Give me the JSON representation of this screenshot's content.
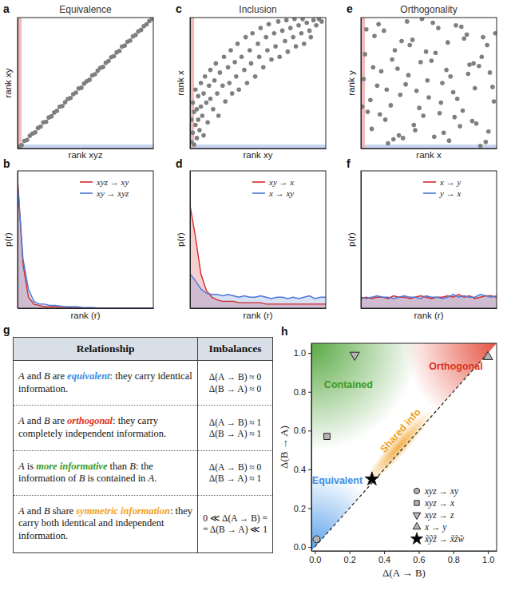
{
  "chart_data": [
    {
      "panel": "a",
      "type": "scatter",
      "title": "Equivalence",
      "x_label": "rank xyz",
      "y_label": "rank xy",
      "xlim": [
        0,
        100
      ],
      "ylim": [
        0,
        100
      ],
      "tick_labels": false,
      "color": "#7f7f7f",
      "neighbor_band": 3,
      "x": [
        1,
        3,
        5,
        7,
        9,
        11,
        13,
        15,
        17,
        19,
        21,
        23,
        25,
        27,
        29,
        31,
        33,
        35,
        37,
        39,
        41,
        43,
        45,
        47,
        49,
        51,
        53,
        55,
        57,
        59,
        61,
        63,
        65,
        67,
        69,
        71,
        73,
        75,
        77,
        79,
        81,
        83,
        85,
        87,
        89,
        91,
        93,
        95,
        97,
        99
      ],
      "values": [
        1.5,
        2.6,
        5.8,
        6.5,
        9.7,
        11.4,
        12.3,
        15.6,
        16.8,
        19.9,
        20.4,
        23.7,
        24.6,
        27.5,
        28.8,
        31.9,
        32.4,
        35.3,
        37.8,
        38.6,
        41.5,
        42.7,
        45.9,
        46.4,
        49.6,
        51.3,
        52.5,
        55.8,
        56.7,
        59.4,
        61.6,
        62.3,
        65.5,
        66.8,
        69.7,
        70.6,
        73.4,
        74.5,
        77.9,
        78.6,
        81.5,
        82.4,
        85.6,
        86.7,
        89.5,
        90.6,
        93.4,
        94.8,
        97.3,
        98.9
      ]
    },
    {
      "panel": "b",
      "type": "line",
      "x_label": "rank (r)",
      "y_label": "p(r)",
      "xlim": [
        0,
        100
      ],
      "ylim": [
        0,
        1
      ],
      "tick_labels": false,
      "legend": "upper right",
      "x": [
        0,
        4,
        8,
        12,
        16,
        20,
        24,
        28,
        32,
        36,
        40,
        44,
        48,
        52,
        56,
        60,
        64,
        68,
        72,
        76,
        80,
        84,
        88,
        92,
        96,
        100
      ],
      "series": [
        {
          "name": "xyz → xy",
          "color": "#d42a2a",
          "values": [
            0.95,
            0.32,
            0.08,
            0.03,
            0.02,
            0.01,
            0.01,
            0.01,
            0.005,
            0.005,
            0,
            0,
            0,
            0,
            0,
            0,
            0,
            0,
            0,
            0,
            0,
            0,
            0,
            0,
            0,
            0
          ]
        },
        {
          "name": "xy → xyz",
          "color": "#4a78d6",
          "values": [
            0.92,
            0.36,
            0.14,
            0.05,
            0.03,
            0.03,
            0.02,
            0.02,
            0.015,
            0.01,
            0.01,
            0.01,
            0.005,
            0.005,
            0.005,
            0,
            0,
            0,
            0,
            0,
            0,
            0,
            0,
            0,
            0,
            0
          ]
        }
      ]
    },
    {
      "panel": "c",
      "type": "scatter",
      "title": "Inclusion",
      "x_label": "rank xy",
      "y_label": "rank x",
      "xlim": [
        0,
        100
      ],
      "ylim": [
        0,
        100
      ],
      "tick_labels": false,
      "color": "#7f7f7f",
      "neighbor_band": 3,
      "x": [
        1,
        1,
        2,
        2,
        3,
        3,
        4,
        4,
        5,
        5,
        6,
        6,
        7,
        8,
        8,
        9,
        10,
        10,
        11,
        12,
        13,
        14,
        15,
        15,
        17,
        18,
        19,
        20,
        21,
        22,
        24,
        25,
        26,
        28,
        29,
        30,
        31,
        33,
        34,
        35,
        36,
        38,
        40,
        41,
        42,
        44,
        45,
        46,
        48,
        50,
        51,
        52,
        54,
        56,
        57,
        58,
        60,
        62,
        63,
        65,
        66,
        68,
        70,
        71,
        72,
        74,
        76,
        77,
        78,
        80,
        82,
        83,
        84,
        86,
        88,
        89,
        91,
        93,
        95,
        97
      ],
      "values": [
        5,
        22,
        12,
        35,
        3,
        28,
        18,
        45,
        8,
        30,
        40,
        22,
        14,
        50,
        32,
        25,
        42,
        10,
        55,
        35,
        20,
        48,
        60,
        38,
        30,
        52,
        65,
        42,
        25,
        58,
        48,
        70,
        36,
        62,
        50,
        75,
        42,
        66,
        55,
        80,
        45,
        70,
        60,
        85,
        50,
        75,
        65,
        88,
        55,
        80,
        70,
        92,
        62,
        85,
        75,
        95,
        68,
        88,
        78,
        97,
        70,
        90,
        82,
        98,
        74,
        92,
        85,
        99,
        78,
        94,
        88,
        99,
        80,
        96,
        90,
        85,
        98,
        94,
        99,
        97
      ]
    },
    {
      "panel": "d",
      "type": "line",
      "x_label": "rank (r)",
      "y_label": "p(r)",
      "xlim": [
        0,
        100
      ],
      "ylim": [
        0,
        1
      ],
      "tick_labels": false,
      "legend": "upper right",
      "x": [
        0,
        4,
        8,
        12,
        16,
        20,
        24,
        28,
        32,
        36,
        40,
        44,
        48,
        52,
        56,
        60,
        64,
        68,
        72,
        76,
        80,
        84,
        88,
        92,
        96,
        100
      ],
      "series": [
        {
          "name": "xy → x",
          "color": "#d42a2a",
          "values": [
            0.75,
            0.52,
            0.25,
            0.13,
            0.08,
            0.06,
            0.05,
            0.05,
            0.05,
            0.04,
            0.04,
            0.04,
            0.04,
            0.04,
            0.03,
            0.03,
            0.03,
            0.03,
            0.03,
            0.03,
            0.03,
            0.03,
            0.03,
            0.03,
            0.03,
            0.03
          ]
        },
        {
          "name": "x → xy",
          "color": "#4a78d6",
          "values": [
            0.25,
            0.2,
            0.14,
            0.11,
            0.1,
            0.1,
            0.09,
            0.1,
            0.09,
            0.08,
            0.09,
            0.08,
            0.08,
            0.09,
            0.08,
            0.07,
            0.08,
            0.08,
            0.07,
            0.08,
            0.07,
            0.08,
            0.09,
            0.07,
            0.08,
            0.08
          ]
        }
      ]
    },
    {
      "panel": "e",
      "type": "scatter",
      "title": "Orthogonality",
      "x_label": "rank x",
      "y_label": "rank y",
      "xlim": [
        0,
        100
      ],
      "ylim": [
        0,
        100
      ],
      "tick_labels": false,
      "color": "#7f7f7f",
      "neighbor_band": 3,
      "x": [
        3,
        8,
        12,
        17,
        22,
        27,
        31,
        36,
        41,
        46,
        52,
        57,
        61,
        66,
        71,
        76,
        82,
        87,
        92,
        97,
        5,
        10,
        15,
        20,
        25,
        29,
        34,
        39,
        44,
        49,
        54,
        59,
        64,
        69,
        74,
        79,
        84,
        89,
        94,
        99,
        2,
        7,
        13,
        18,
        23,
        28,
        33,
        38,
        43,
        48,
        53,
        58,
        63,
        68,
        73,
        78,
        83,
        88,
        93,
        98,
        4,
        9,
        14,
        19,
        24,
        30,
        35,
        40,
        45,
        50,
        55,
        60,
        65,
        70,
        75,
        80,
        85,
        90,
        95,
        1
      ],
      "values": [
        72,
        15,
        48,
        90,
        33,
        61,
        8,
        79,
        44,
        25,
        67,
        92,
        12,
        55,
        38,
        84,
        21,
        63,
        5,
        47,
        28,
        86,
        59,
        4,
        75,
        41,
        97,
        18,
        66,
        52,
        9,
        35,
        81,
        24,
        93,
        57,
        46,
        70,
        13,
        88,
        53,
        37,
        95,
        22,
        68,
        10,
        49,
        83,
        31,
        74,
        96,
        27,
        60,
        43,
        17,
        87,
        65,
        2,
        79,
        36,
        91,
        62,
        26,
        45,
        7,
        82,
        56,
        14,
        99,
        39,
        73,
        50,
        6,
        94,
        29,
        64,
        19,
        85,
        58,
        32
      ]
    },
    {
      "panel": "f",
      "type": "line",
      "x_label": "rank (r)",
      "y_label": "p(r)",
      "xlim": [
        0,
        100
      ],
      "ylim": [
        0,
        1
      ],
      "tick_labels": false,
      "legend": "upper right",
      "x": [
        0,
        4,
        8,
        12,
        16,
        20,
        24,
        28,
        32,
        36,
        40,
        44,
        48,
        52,
        56,
        60,
        64,
        68,
        72,
        76,
        80,
        84,
        88,
        92,
        96,
        100
      ],
      "series": [
        {
          "name": "x → y",
          "color": "#d42a2a",
          "values": [
            0.07,
            0.08,
            0.07,
            0.08,
            0.08,
            0.07,
            0.09,
            0.08,
            0.08,
            0.07,
            0.08,
            0.09,
            0.08,
            0.07,
            0.08,
            0.08,
            0.09,
            0.08,
            0.1,
            0.08,
            0.09,
            0.07,
            0.08,
            0.09,
            0.09,
            0.08
          ]
        },
        {
          "name": "y → x",
          "color": "#4a78d6",
          "values": [
            0.08,
            0.07,
            0.08,
            0.09,
            0.08,
            0.08,
            0.07,
            0.08,
            0.09,
            0.08,
            0.08,
            0.07,
            0.09,
            0.08,
            0.08,
            0.07,
            0.08,
            0.1,
            0.08,
            0.09,
            0.08,
            0.08,
            0.1,
            0.09,
            0.08,
            0.09
          ]
        }
      ]
    },
    {
      "panel": "h",
      "type": "scatter",
      "x_label": "Δ(A → B)",
      "y_label": "Δ(B → A)",
      "xlim": [
        -0.02,
        1.05
      ],
      "ylim": [
        -0.02,
        1.05
      ],
      "xticks": [
        {
          "value": 0,
          "label": "0.0"
        },
        {
          "value": 0.2,
          "label": "0.2"
        },
        {
          "value": 0.4,
          "label": "0.4"
        },
        {
          "value": 0.6,
          "label": "0.6"
        },
        {
          "value": 0.8,
          "label": "0.8"
        },
        {
          "value": 1,
          "label": "1.0"
        }
      ],
      "yticks": [
        {
          "value": 0,
          "label": "0.0"
        },
        {
          "value": 0.2,
          "label": "0.2"
        },
        {
          "value": 0.4,
          "label": "0.4"
        },
        {
          "value": 0.6,
          "label": "0.6"
        },
        {
          "value": 0.8,
          "label": "0.8"
        },
        {
          "value": 1,
          "label": "1.0"
        }
      ],
      "diagonal": [
        0,
        1
      ],
      "legend": "lower right",
      "annotations": [
        {
          "text": "Contained",
          "color": "#3c9a22"
        },
        {
          "text": "Orthogonal",
          "color": "#e0321e"
        },
        {
          "text": "Equivalent",
          "color": "#3a8ee6"
        },
        {
          "text": "Shared info",
          "color": "#f0a020"
        }
      ],
      "series": [
        {
          "name": "xyz → xy",
          "marker": "circle",
          "color": "#b5b5b5",
          "x": [
            0.01
          ],
          "values": [
            0.04
          ]
        },
        {
          "name": "xyz → x",
          "marker": "square",
          "color": "#b5b5b5",
          "x": [
            0.07
          ],
          "values": [
            0.57
          ]
        },
        {
          "name": "xyz → z",
          "marker": "triangle-down",
          "color": "#b5b5b5",
          "x": [
            0.23
          ],
          "values": [
            0.99
          ]
        },
        {
          "name": "x → y",
          "marker": "triangle-up",
          "color": "#b5b5b5",
          "x": [
            1.0
          ],
          "values": [
            0.98
          ]
        },
        {
          "name": "x̃ỹz̃ → x̃z̃w̃",
          "marker": "star",
          "color": "#000000",
          "x": [
            0.33
          ],
          "values": [
            0.35
          ]
        }
      ]
    }
  ],
  "table": {
    "panel": "g",
    "header": [
      "Relationship",
      "Imbalances"
    ],
    "rows": [
      {
        "relationship": [
          {
            "text": "A",
            "italic": true
          },
          {
            "text": " and "
          },
          {
            "text": "B",
            "italic": true
          },
          {
            "text": " are "
          },
          {
            "text": "equivalent",
            "color": "#3a8ee6"
          },
          {
            "text": ": they carry identical information."
          }
        ],
        "imbalances": [
          "Δ(A → B) ≈ 0",
          "Δ(B → A) ≈ 0"
        ]
      },
      {
        "relationship": [
          {
            "text": "A",
            "italic": true
          },
          {
            "text": " and "
          },
          {
            "text": "B",
            "italic": true
          },
          {
            "text": " are "
          },
          {
            "text": "orthogonal",
            "color": "#e0321e"
          },
          {
            "text": ": they carry completely independent information."
          }
        ],
        "imbalances": [
          "Δ(A → B) ≈ 1",
          "Δ(B → A) ≈ 1"
        ]
      },
      {
        "relationship": [
          {
            "text": "A",
            "italic": true
          },
          {
            "text": " is "
          },
          {
            "text": "more informative",
            "color": "#3c9a22"
          },
          {
            "text": " than "
          },
          {
            "text": "B",
            "italic": true
          },
          {
            "text": ": the information of "
          },
          {
            "text": "B",
            "italic": true
          },
          {
            "text": " is contained in "
          },
          {
            "text": "A",
            "italic": true
          },
          {
            "text": "."
          }
        ],
        "imbalances": [
          "Δ(A → B) ≈ 0",
          "Δ(B → A) ≈ 1"
        ]
      },
      {
        "relationship": [
          {
            "text": "A",
            "italic": true
          },
          {
            "text": " and "
          },
          {
            "text": "B",
            "italic": true
          },
          {
            "text": " share "
          },
          {
            "text": "symmetric information",
            "color": "#f0a020"
          },
          {
            "text": ": they carry both identical and independent information."
          }
        ],
        "imbalances": [
          "0 ≪ Δ(A → B) =",
          "= Δ(B → A) ≪ 1"
        ]
      }
    ]
  }
}
